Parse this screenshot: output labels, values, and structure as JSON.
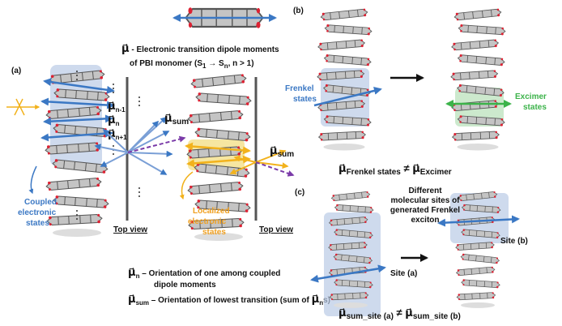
{
  "top": {
    "symbol": "μ⃗",
    "line1": " - Electronic transition dipole moments",
    "line2": "of PBI monomer (S",
    "sub1": "1",
    "arrow": " → S",
    "subn": "n",
    "tail": ", n > 1)"
  },
  "panel_a": {
    "label": "(a)",
    "dipole_labels": [
      {
        "symbol": "μ⃗",
        "sub": "n-1"
      },
      {
        "symbol": "μ⃗",
        "sub": "n"
      },
      {
        "symbol": "μ⃗",
        "sub": "n+1"
      }
    ],
    "coupled_sum": {
      "symbol": "μ⃗",
      "sub": "sum"
    },
    "localized_sum": {
      "symbol": "μ⃗",
      "sub": "sum"
    },
    "coupled_label": [
      "Coupled",
      "electronic",
      "states"
    ],
    "localized_label": [
      "Localized",
      "electronic",
      "states"
    ],
    "top_view_labels": [
      "Top view",
      "Top view"
    ],
    "legend_n": {
      "symbol": "μ⃗",
      "sub": "n",
      "line1": " – Orientation of one among coupled",
      "line2": "dipole moments"
    },
    "legend_sum": {
      "symbol": "μ⃗",
      "sub": "sum",
      "text": " – Orientation of lowest transition (sum of ",
      "inner_symbol": "μ⃗",
      "inner_sub": "n",
      "tail": "s)"
    }
  },
  "panel_b": {
    "label": "(b)",
    "frenkel_label": [
      "Frenkel",
      "states"
    ],
    "excimer_label": [
      "Excimer",
      "states"
    ],
    "equation": {
      "left_symbol": "μ⃗",
      "left_sub": "Frenkel states",
      "neq": " ≠ ",
      "right_symbol": "μ⃗",
      "right_sub": "Excimer"
    }
  },
  "panel_c": {
    "label": "(c)",
    "caption": [
      "Different",
      "molecular sites of",
      "generated Frenkel",
      "exciton"
    ],
    "site_a": "Site (a)",
    "site_b": "Site (b)",
    "equation": {
      "left_symbol": "μ⃗",
      "left_sub": "sum_site (a)",
      "neq": " ≠ ",
      "right_symbol": "μ⃗",
      "right_sub": "sum_site (b)"
    }
  }
}
